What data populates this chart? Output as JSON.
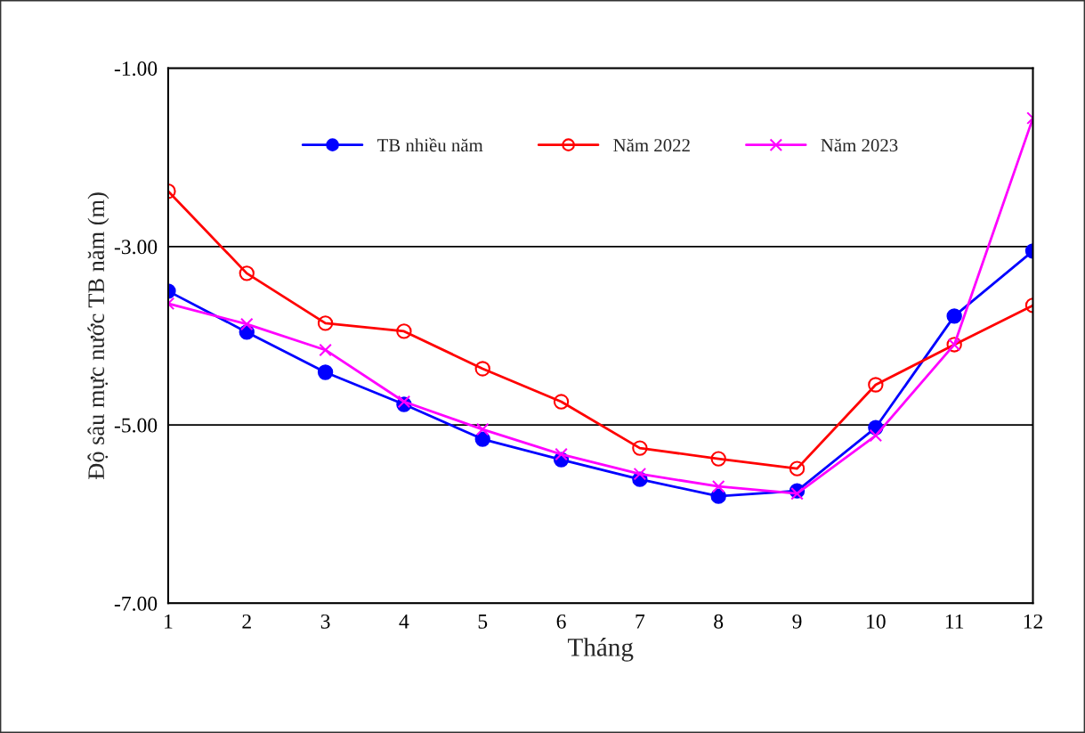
{
  "chart_data": {
    "type": "line",
    "xlabel": "Tháng",
    "ylabel": "Độ sâu mực nước TB năm (m)",
    "x": [
      1,
      2,
      3,
      4,
      5,
      6,
      7,
      8,
      9,
      10,
      11,
      12
    ],
    "xlim": [
      1,
      12
    ],
    "xticks": [
      1,
      2,
      3,
      4,
      5,
      6,
      7,
      8,
      9,
      10,
      11,
      12
    ],
    "ylim": [
      -7,
      -1
    ],
    "yticks": [
      {
        "value": -7,
        "label": "-7.00"
      },
      {
        "value": -5,
        "label": "-5.00"
      },
      {
        "value": -3,
        "label": "-3.00"
      },
      {
        "value": -1,
        "label": "-1.00"
      }
    ],
    "grid": "y",
    "legend": "top",
    "series": [
      {
        "name": "TB nhiều năm",
        "color": "#0000ff",
        "marker": "circle",
        "values": [
          -3.5,
          -3.96,
          -4.41,
          -4.77,
          -5.16,
          -5.39,
          -5.61,
          -5.8,
          -5.74,
          -5.03,
          -3.78,
          -3.05
        ]
      },
      {
        "name": "Năm 2022",
        "color": "#ff0000",
        "marker": "circle",
        "values": [
          -2.38,
          -3.3,
          -3.86,
          -3.95,
          -4.37,
          -4.74,
          -5.26,
          -5.38,
          -5.49,
          -4.55,
          -4.1,
          -3.66
        ]
      },
      {
        "name": "Năm 2023",
        "color": "#ff00ff",
        "marker": "cross",
        "values": [
          -3.64,
          -3.87,
          -4.16,
          -4.74,
          -5.05,
          -5.33,
          -5.55,
          -5.69,
          -5.77,
          -5.12,
          -4.1,
          -1.56
        ]
      }
    ]
  }
}
